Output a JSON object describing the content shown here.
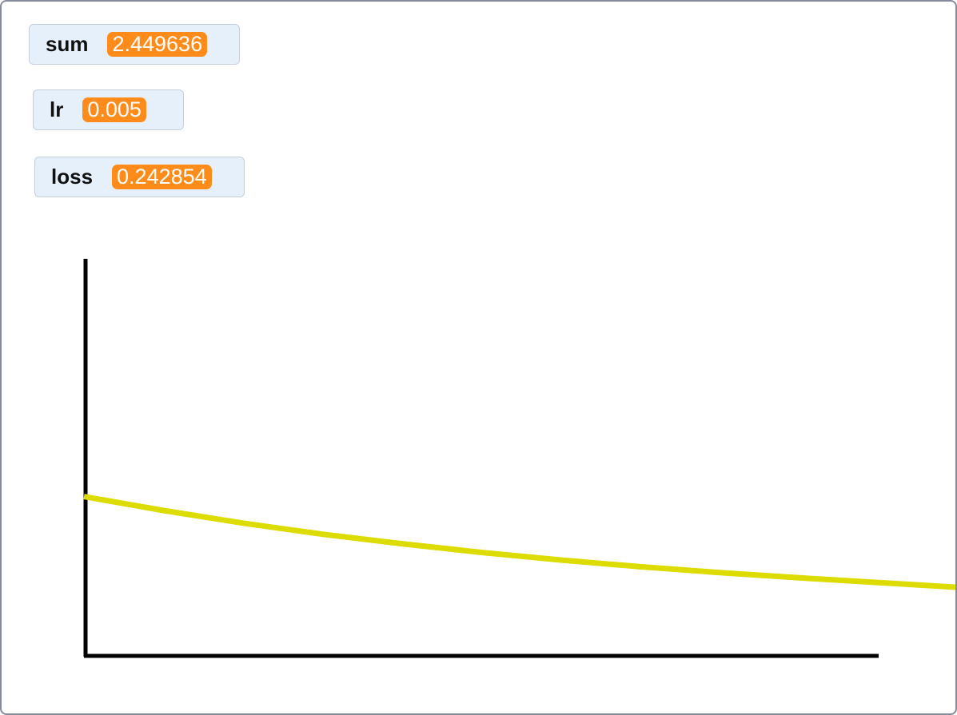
{
  "monitors": {
    "sum": {
      "label": "sum",
      "value": "2.449636"
    },
    "lr": {
      "label": "lr",
      "value": "0.005"
    },
    "loss": {
      "label": "loss",
      "value": "0.242854"
    }
  },
  "colors": {
    "monitor_background": "#e6f0fb",
    "value_badge": "#ff8c1a",
    "curve": "#dcdc00",
    "axes": "#000000",
    "frame": "#858b9a"
  },
  "chart_data": {
    "type": "line",
    "title": "",
    "xlabel": "",
    "ylabel": "",
    "grid": false,
    "series": [
      {
        "color": "#dcdc00",
        "x": [
          0,
          0.1,
          0.2,
          0.3,
          0.4,
          0.5,
          0.6,
          0.7,
          0.8,
          0.9,
          1.0,
          1.1
        ],
        "y": [
          0.4,
          0.365,
          0.333,
          0.305,
          0.281,
          0.259,
          0.24,
          0.223,
          0.208,
          0.195,
          0.183,
          0.171
        ]
      }
    ],
    "xlim": [
      0,
      1.0
    ],
    "ylim": [
      0,
      1.0
    ]
  }
}
